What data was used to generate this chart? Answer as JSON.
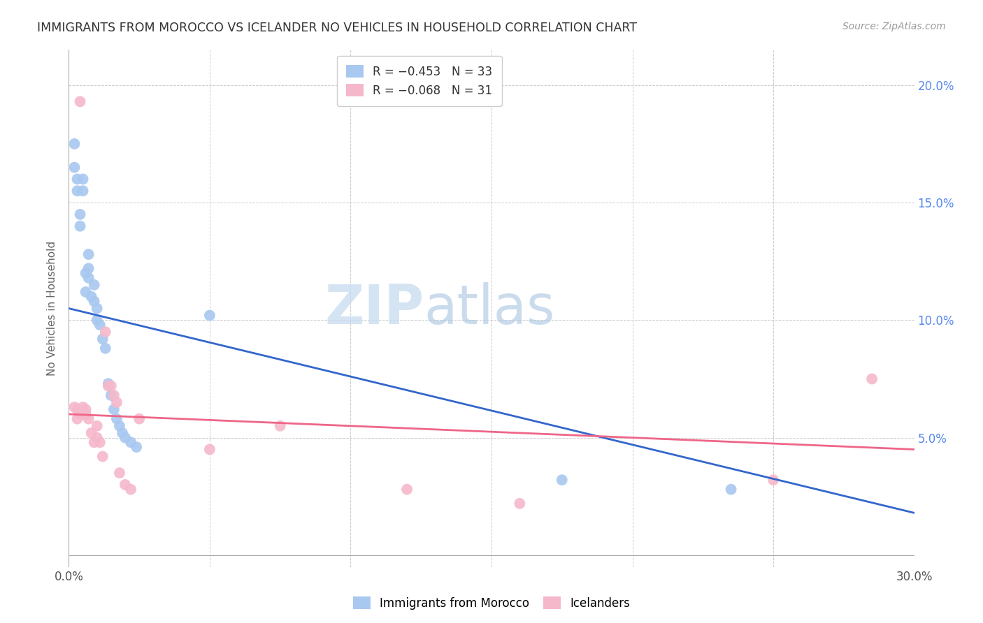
{
  "title": "IMMIGRANTS FROM MOROCCO VS ICELANDER NO VEHICLES IN HOUSEHOLD CORRELATION CHART",
  "source": "Source: ZipAtlas.com",
  "ylabel": "No Vehicles in Household",
  "xlim": [
    0.0,
    0.3
  ],
  "ylim": [
    -0.005,
    0.215
  ],
  "watermark_zip": "ZIP",
  "watermark_atlas": "atlas",
  "legend_r1": "R = −0.453",
  "legend_n1": "N = 33",
  "legend_r2": "R = −0.068",
  "legend_n2": "N = 31",
  "morocco_color": "#A8C8F0",
  "iceland_color": "#F5B8CB",
  "morocco_line_color": "#3366CC",
  "iceland_line_color": "#EE6688",
  "background_color": "#ffffff",
  "grid_color": "#cccccc",
  "title_color": "#333333",
  "right_tick_color": "#5588EE",
  "morocco_x": [
    0.002,
    0.002,
    0.003,
    0.003,
    0.004,
    0.004,
    0.005,
    0.005,
    0.006,
    0.006,
    0.007,
    0.007,
    0.007,
    0.008,
    0.009,
    0.009,
    0.01,
    0.01,
    0.011,
    0.012,
    0.013,
    0.014,
    0.015,
    0.016,
    0.017,
    0.018,
    0.019,
    0.02,
    0.022,
    0.024,
    0.05,
    0.175,
    0.235
  ],
  "morocco_y": [
    0.175,
    0.165,
    0.16,
    0.155,
    0.145,
    0.14,
    0.16,
    0.155,
    0.12,
    0.112,
    0.128,
    0.122,
    0.118,
    0.11,
    0.115,
    0.108,
    0.105,
    0.1,
    0.098,
    0.092,
    0.088,
    0.073,
    0.068,
    0.062,
    0.058,
    0.055,
    0.052,
    0.05,
    0.048,
    0.046,
    0.102,
    0.032,
    0.028
  ],
  "iceland_x": [
    0.002,
    0.003,
    0.003,
    0.004,
    0.004,
    0.005,
    0.005,
    0.006,
    0.006,
    0.007,
    0.008,
    0.009,
    0.01,
    0.01,
    0.011,
    0.012,
    0.013,
    0.014,
    0.015,
    0.016,
    0.017,
    0.018,
    0.02,
    0.022,
    0.025,
    0.05,
    0.075,
    0.12,
    0.16,
    0.25,
    0.285
  ],
  "iceland_y": [
    0.063,
    0.058,
    0.062,
    0.06,
    0.193,
    0.063,
    0.06,
    0.062,
    0.06,
    0.058,
    0.052,
    0.048,
    0.05,
    0.055,
    0.048,
    0.042,
    0.095,
    0.072,
    0.072,
    0.068,
    0.065,
    0.035,
    0.03,
    0.028,
    0.058,
    0.045,
    0.055,
    0.028,
    0.022,
    0.032,
    0.075
  ]
}
